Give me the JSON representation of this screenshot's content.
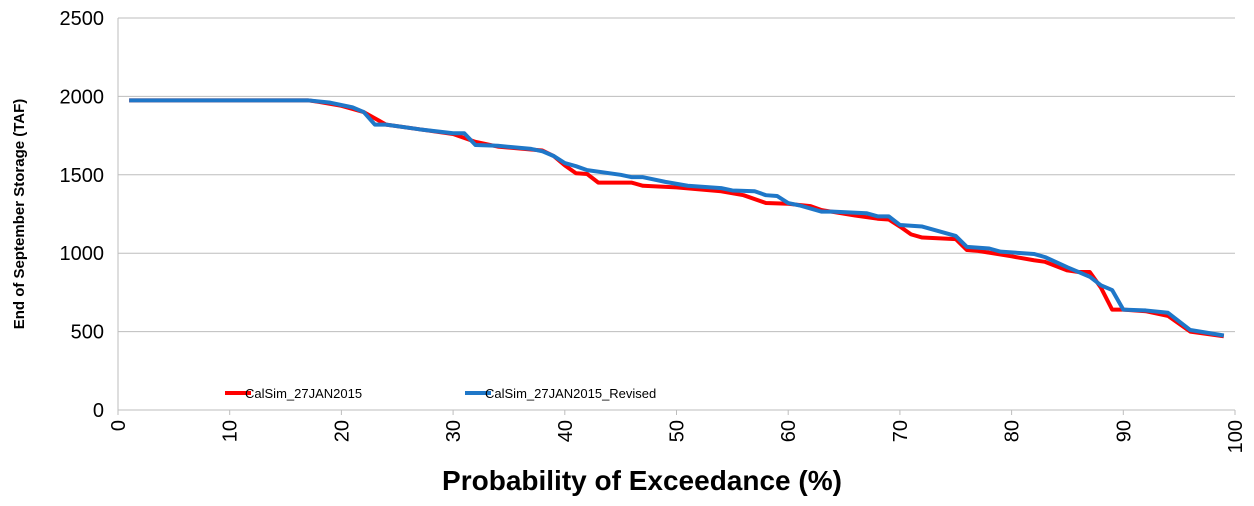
{
  "chart_data": {
    "type": "line",
    "xlabel": "Probability of Exceedance (%)",
    "ylabel": "End of September Storage (TAF)",
    "xlim": [
      0,
      100
    ],
    "xticks": [
      0,
      10,
      20,
      30,
      40,
      50,
      60,
      70,
      80,
      90,
      100
    ],
    "ylim": [
      0,
      2500
    ],
    "yticks": [
      0,
      500,
      1000,
      1500,
      2000,
      2500
    ],
    "grid": true,
    "legend": "bottom-left",
    "series": [
      {
        "name": "CalSim_27JAN2015",
        "color": "#ff0000",
        "x": [
          1,
          17,
          18,
          20,
          22,
          23,
          24,
          27,
          30,
          32,
          34,
          38,
          39,
          40,
          41,
          42,
          43,
          46,
          47,
          50,
          54,
          56,
          58,
          60,
          62,
          63,
          66,
          68,
          69,
          70,
          71,
          72,
          75,
          76,
          77,
          80,
          82,
          83,
          85,
          86,
          87,
          88,
          89,
          90,
          92,
          94,
          96,
          99
        ],
        "values": [
          1975,
          1975,
          1965,
          1940,
          1900,
          1860,
          1820,
          1790,
          1760,
          1710,
          1680,
          1655,
          1620,
          1560,
          1510,
          1505,
          1450,
          1450,
          1430,
          1420,
          1395,
          1370,
          1320,
          1315,
          1300,
          1275,
          1240,
          1220,
          1215,
          1170,
          1120,
          1100,
          1090,
          1020,
          1015,
          980,
          955,
          945,
          890,
          880,
          880,
          780,
          640,
          640,
          630,
          600,
          500,
          470
        ]
      },
      {
        "name": "CalSim_27JAN2015_Revised",
        "color": "#1f77c8",
        "x": [
          1,
          17,
          19,
          21,
          22,
          23,
          24,
          27,
          30,
          31,
          32,
          34,
          37,
          38,
          39,
          40,
          41,
          42,
          45,
          46,
          47,
          49,
          51,
          54,
          55,
          57,
          58,
          59,
          60,
          61,
          63,
          64,
          67,
          68,
          69,
          70,
          72,
          75,
          76,
          78,
          79,
          82,
          83,
          85,
          87,
          88,
          89,
          90,
          92,
          94,
          96,
          99
        ],
        "values": [
          1975,
          1975,
          1960,
          1930,
          1900,
          1820,
          1820,
          1790,
          1765,
          1765,
          1690,
          1685,
          1665,
          1650,
          1620,
          1575,
          1555,
          1530,
          1500,
          1485,
          1485,
          1455,
          1430,
          1415,
          1400,
          1395,
          1370,
          1365,
          1320,
          1305,
          1265,
          1265,
          1255,
          1235,
          1235,
          1180,
          1170,
          1110,
          1040,
          1030,
          1010,
          995,
          975,
          910,
          850,
          795,
          765,
          640,
          635,
          620,
          510,
          475
        ]
      }
    ]
  }
}
